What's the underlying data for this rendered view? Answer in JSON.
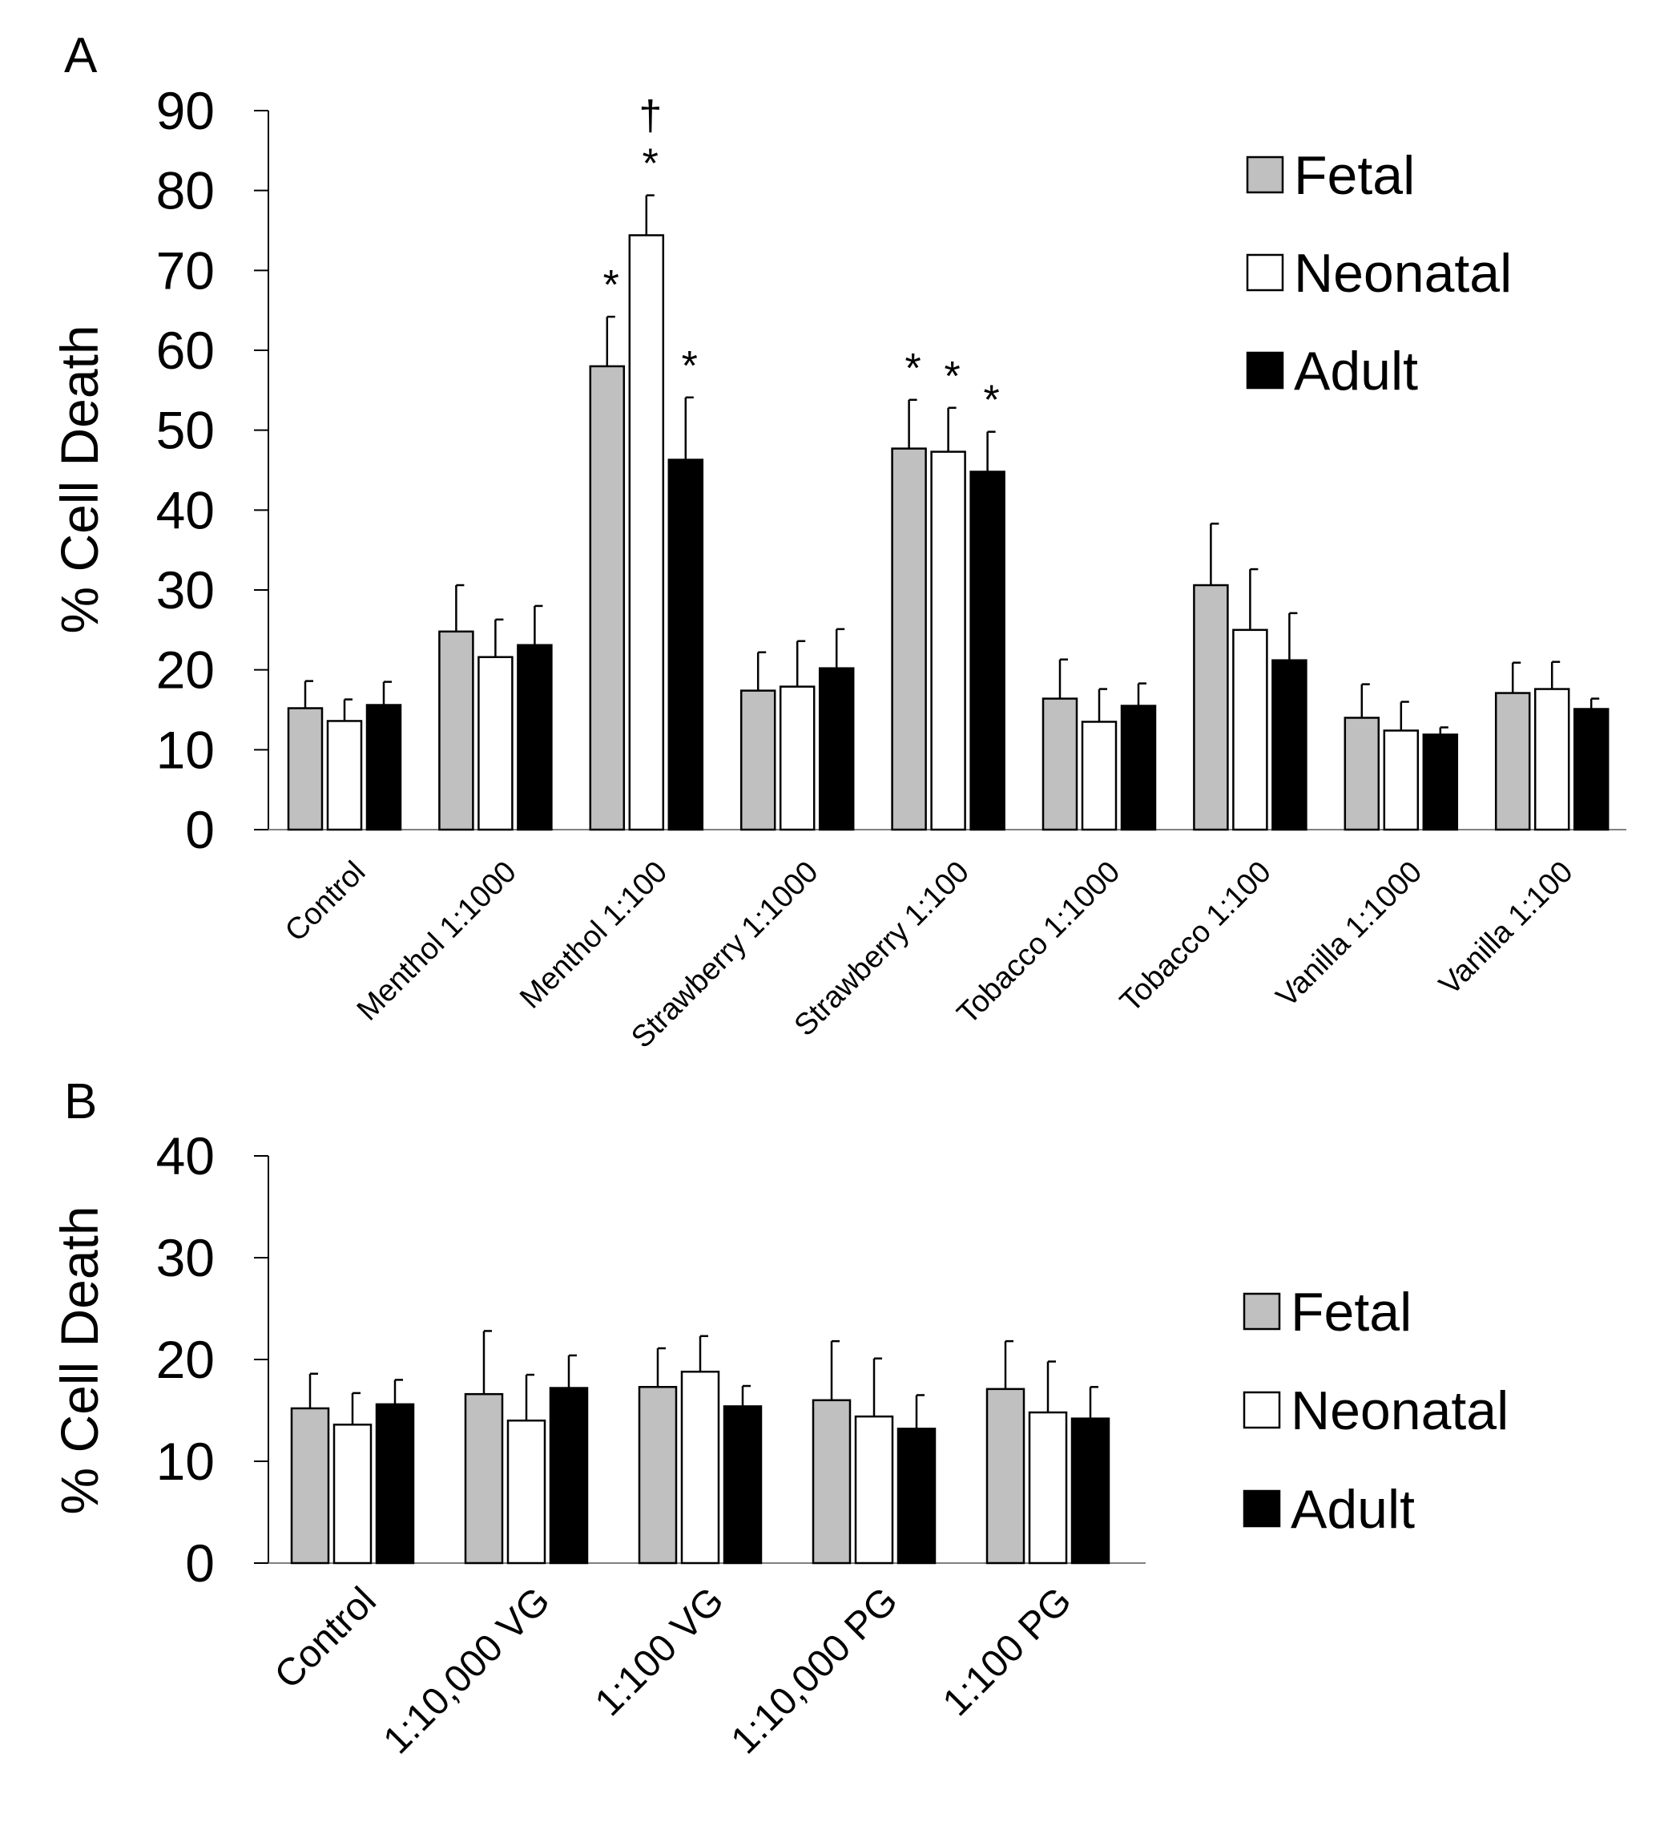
{
  "colors": {
    "fetal": "#c0c0c0",
    "neonatal": "#ffffff",
    "adult": "#000000",
    "stroke": "#000000",
    "axis": "#808080"
  },
  "chart_data": [
    {
      "panel": "A",
      "type": "bar",
      "ylabel": "% Cell Death",
      "ylim": [
        0,
        90
      ],
      "yticks": [
        0,
        10,
        20,
        30,
        40,
        50,
        60,
        70,
        80,
        90
      ],
      "categories": [
        "Control",
        "Menthol 1:1000",
        "Menthol 1:100",
        "Strawberry 1:1000",
        "Strawberry 1:100",
        "Tobacco 1:1000",
        "Tobacco 1:100",
        "Vanilla 1:1000",
        "Vanilla 1:100"
      ],
      "series": [
        {
          "name": "Fetal",
          "color": "#c0c0c0",
          "values": [
            15.2,
            24.8,
            58.0,
            17.4,
            47.7,
            16.4,
            30.6,
            14.0,
            17.1
          ],
          "errors": [
            3.4,
            5.8,
            6.2,
            4.8,
            6.1,
            4.9,
            7.7,
            4.2,
            3.8
          ]
        },
        {
          "name": "Neonatal",
          "color": "#ffffff",
          "values": [
            13.6,
            21.6,
            74.4,
            17.9,
            47.3,
            13.5,
            25.0,
            12.4,
            17.6
          ],
          "errors": [
            2.7,
            4.7,
            5.0,
            5.7,
            5.5,
            4.1,
            7.6,
            3.6,
            3.4
          ]
        },
        {
          "name": "Adult",
          "color": "#000000",
          "values": [
            15.6,
            23.1,
            46.3,
            20.2,
            44.8,
            15.5,
            21.2,
            11.9,
            15.1
          ],
          "errors": [
            2.9,
            4.9,
            7.8,
            4.9,
            5.0,
            2.8,
            5.9,
            0.9,
            1.3
          ]
        }
      ],
      "annotations": [
        {
          "category": 2,
          "series": 0,
          "text": "*"
        },
        {
          "category": 2,
          "series": 1,
          "text": "*"
        },
        {
          "category": 2,
          "series": 1,
          "text": "†"
        },
        {
          "category": 2,
          "series": 2,
          "text": "*"
        },
        {
          "category": 4,
          "series": 0,
          "text": "*"
        },
        {
          "category": 4,
          "series": 1,
          "text": "*"
        },
        {
          "category": 4,
          "series": 2,
          "text": "*"
        }
      ],
      "legend": [
        "Fetal",
        "Neonatal",
        "Adult"
      ],
      "legend_position": "top-right"
    },
    {
      "panel": "B",
      "type": "bar",
      "ylabel": "% Cell Death",
      "ylim": [
        0,
        40
      ],
      "yticks": [
        0,
        10,
        20,
        30,
        40
      ],
      "categories": [
        "Control",
        "1:10,000 VG",
        "1:100 VG",
        "1:10,000 PG",
        "1:100 PG"
      ],
      "series": [
        {
          "name": "Fetal",
          "color": "#c0c0c0",
          "values": [
            15.2,
            16.6,
            17.3,
            16.0,
            17.1
          ],
          "errors": [
            3.4,
            6.2,
            3.8,
            5.8,
            4.7
          ]
        },
        {
          "name": "Neonatal",
          "color": "#ffffff",
          "values": [
            13.6,
            14.0,
            18.8,
            14.4,
            14.8
          ],
          "errors": [
            3.1,
            4.5,
            3.5,
            5.7,
            5.0
          ]
        },
        {
          "name": "Adult",
          "color": "#000000",
          "values": [
            15.6,
            17.2,
            15.4,
            13.2,
            14.2
          ],
          "errors": [
            2.4,
            3.2,
            2.0,
            3.3,
            3.1
          ]
        }
      ],
      "annotations": [],
      "legend": [
        "Fetal",
        "Neonatal",
        "Adult"
      ],
      "legend_position": "right"
    }
  ]
}
